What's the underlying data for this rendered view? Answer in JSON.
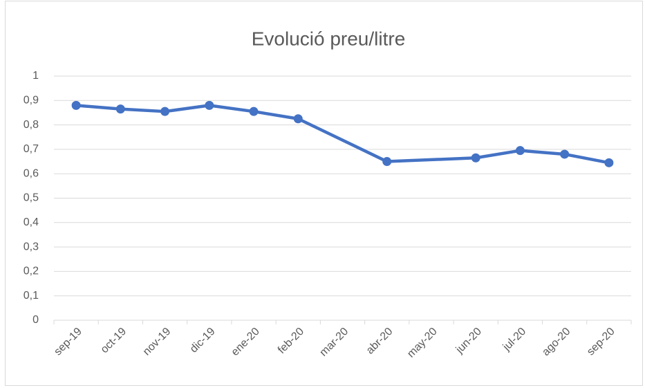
{
  "chart_data": {
    "type": "line",
    "title": "Evolució preu/litre",
    "categories": [
      "sep-19",
      "oct-19",
      "nov-19",
      "dic-19",
      "ene-20",
      "feb-20",
      "mar-20",
      "abr-20",
      "may-20",
      "jun-20",
      "jul-20",
      "ago-20",
      "sep-20"
    ],
    "series": [
      {
        "name": "preu/litre",
        "color": "#4472c4",
        "x": [
          "sep-19",
          "oct-19",
          "nov-19",
          "dic-19",
          "ene-20",
          "feb-20",
          "abr-20",
          "jun-20",
          "jul-20",
          "ago-20",
          "sep-20"
        ],
        "values": [
          0.88,
          0.865,
          0.855,
          0.88,
          0.855,
          0.825,
          0.65,
          0.665,
          0.695,
          0.68,
          0.645
        ]
      }
    ],
    "ylim": [
      0,
      1
    ],
    "yticks": [
      0,
      {
        "value": 0.1,
        "label": "0,1"
      },
      {
        "value": 0.2,
        "label": "0,2"
      },
      {
        "value": 0.3,
        "label": "0,3"
      },
      {
        "value": 0.4,
        "label": "0,4"
      },
      {
        "value": 0.5,
        "label": "0,5"
      },
      {
        "value": 0.6,
        "label": "0,6"
      },
      {
        "value": 0.7,
        "label": "0,7"
      },
      {
        "value": 0.8,
        "label": "0,8"
      },
      {
        "value": 0.9,
        "label": "0,9"
      },
      1
    ],
    "grid": true
  }
}
